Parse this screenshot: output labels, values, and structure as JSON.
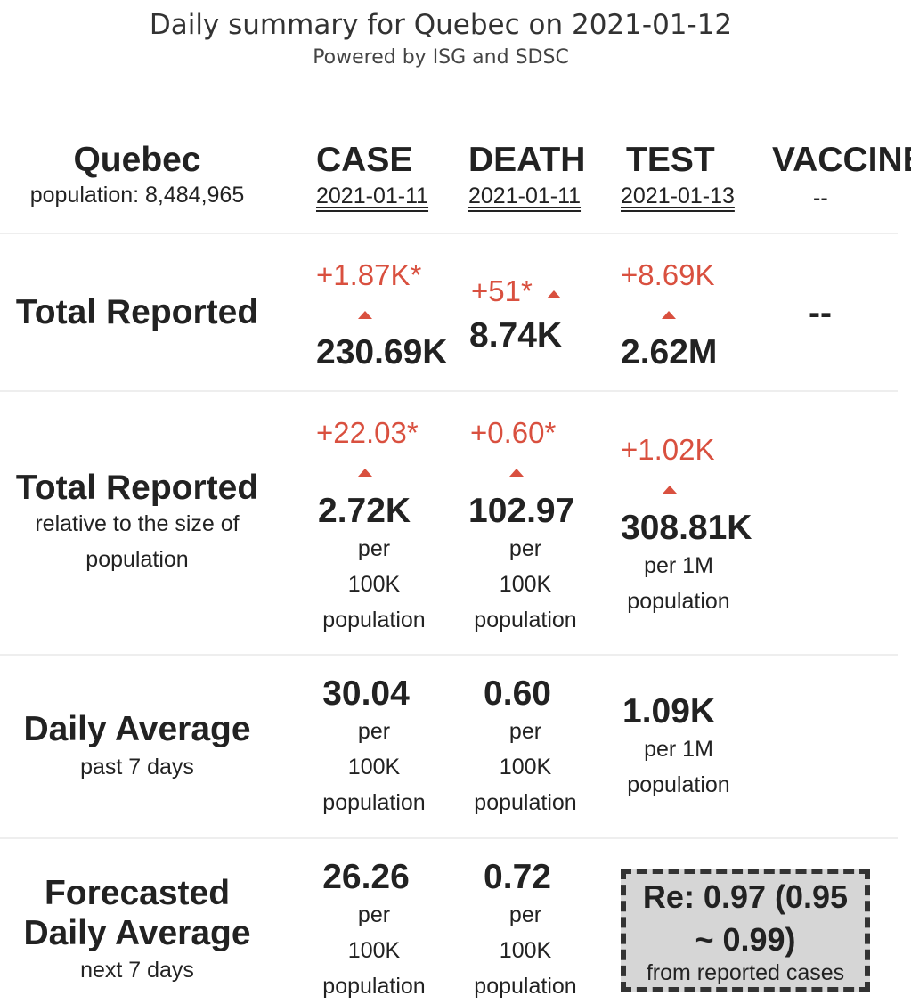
{
  "header": {
    "title": "Daily summary for Quebec on 2021-01-12",
    "subtitle": "Powered by ISG and SDSC"
  },
  "region": {
    "name": "Quebec",
    "population": "population: 8,484,965"
  },
  "columns": {
    "case": {
      "label": "CASE",
      "date": "2021-01-11"
    },
    "death": {
      "label": "DEATH",
      "date": "2021-01-11"
    },
    "test": {
      "label": "TEST",
      "date": "2021-01-13"
    },
    "vaccine": {
      "label": "VACCINE",
      "date": "--"
    }
  },
  "rows": {
    "total": {
      "label": "Total Reported",
      "case": {
        "change": "+1.87K*",
        "value": "230.69K"
      },
      "death": {
        "change": "+51*",
        "value": "8.74K"
      },
      "test": {
        "change": "+8.69K",
        "value": "2.62M"
      },
      "vaccine": {
        "value": "--"
      }
    },
    "relative": {
      "label": "Total Reported",
      "sub1": "relative to the size of",
      "sub2": "population",
      "case": {
        "change": "+22.03*",
        "value": "2.72K",
        "unit": [
          "per",
          "100K",
          "population"
        ]
      },
      "death": {
        "change": "+0.60*",
        "value": "102.97",
        "unit": [
          "per",
          "100K",
          "population"
        ]
      },
      "test": {
        "change": "+1.02K",
        "value": "308.81K",
        "unit": [
          "per 1M",
          "population"
        ]
      }
    },
    "average": {
      "label": "Daily Average",
      "sub": "past 7 days",
      "case": {
        "value": "30.04",
        "unit": [
          "per",
          "100K",
          "population"
        ]
      },
      "death": {
        "value": "0.60",
        "unit": [
          "per",
          "100K",
          "population"
        ]
      },
      "test": {
        "value": "1.09K",
        "unit": [
          "per 1M",
          "population"
        ]
      }
    },
    "forecast": {
      "label1": "Forecasted",
      "label2": "Daily Average",
      "sub": "next 7 days",
      "case": {
        "value": "26.26",
        "unit": [
          "per",
          "100K",
          "population"
        ]
      },
      "death": {
        "value": "0.72",
        "unit": [
          "per",
          "100K",
          "population"
        ]
      },
      "re": {
        "line1": "Re: 0.97 (0.95",
        "line2": "~ 0.99)",
        "note": "from reported cases"
      }
    }
  },
  "colors": {
    "accent_red": "#d9503f",
    "divider": "#eeeeee",
    "re_box_bg": "#d6d6d6"
  }
}
